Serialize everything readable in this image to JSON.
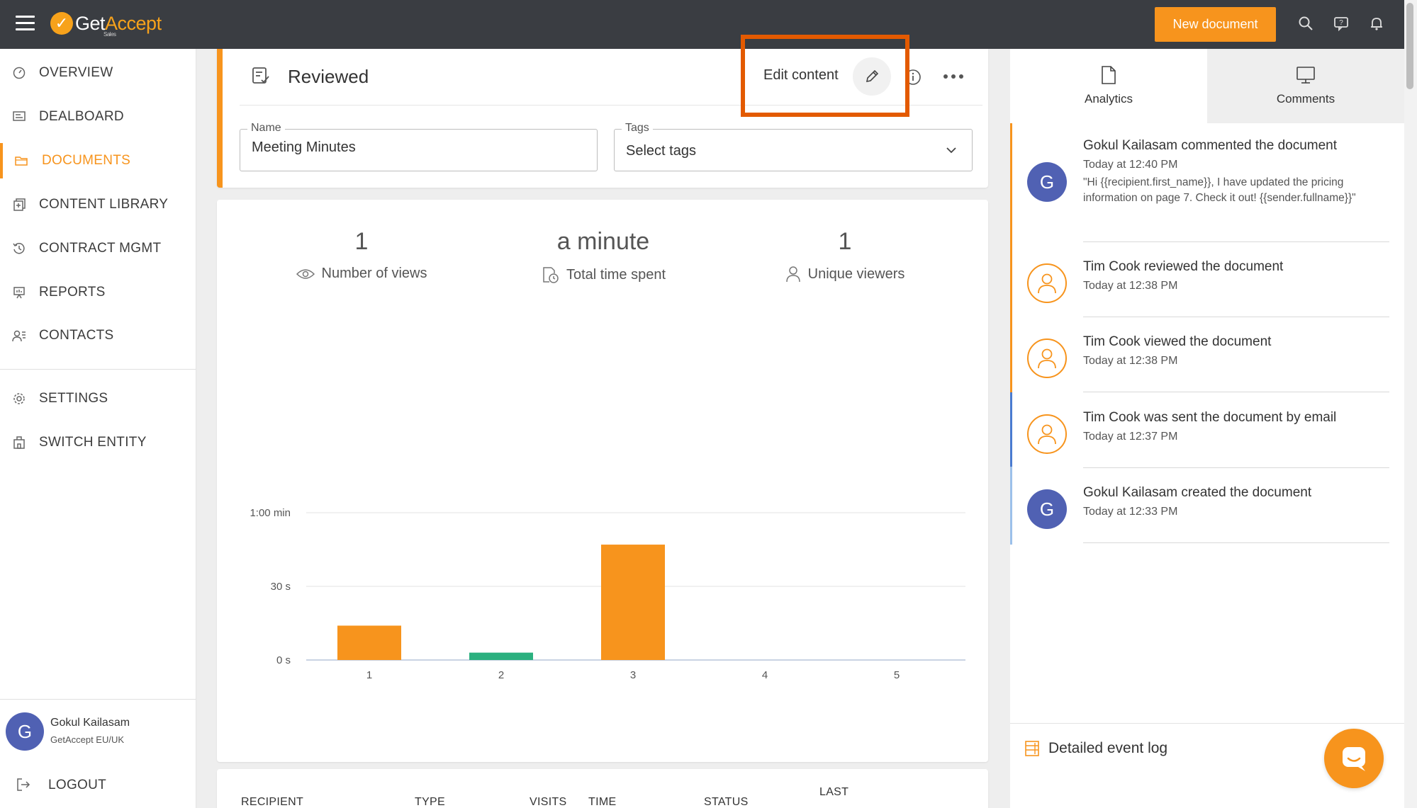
{
  "app": {
    "logo_text_a": "Get",
    "logo_text_b": "Accept",
    "logo_sub": "Sales",
    "brand_color": "#f7941d"
  },
  "topbar": {
    "new_document_label": "New document",
    "icons": [
      "menu-icon",
      "search-icon",
      "help-icon",
      "bell-icon"
    ]
  },
  "sidebar": {
    "items": [
      {
        "label": "OVERVIEW",
        "icon": "gauge-icon"
      },
      {
        "label": "DEALBOARD",
        "icon": "dealboard-icon"
      },
      {
        "label": "DOCUMENTS",
        "icon": "folder-icon",
        "active": true
      },
      {
        "label": "CONTENT LIBRARY",
        "icon": "library-icon"
      },
      {
        "label": "CONTRACT MGMT",
        "icon": "history-icon"
      },
      {
        "label": "REPORTS",
        "icon": "presentation-icon"
      },
      {
        "label": "CONTACTS",
        "icon": "contacts-icon"
      },
      {
        "label": "SETTINGS",
        "icon": "gear-icon"
      },
      {
        "label": "SWITCH ENTITY",
        "icon": "entity-icon"
      }
    ],
    "user": {
      "initial": "G",
      "name": "Gokul Kailasam",
      "org": "GetAccept EU/UK"
    },
    "logout_label": "LOGOUT"
  },
  "document": {
    "status": "Reviewed",
    "edit_content_label": "Edit content",
    "name_label": "Name",
    "name_value": "Meeting Minutes",
    "tags_label": "Tags",
    "tags_placeholder": "Select tags"
  },
  "stats": {
    "views_value": "1",
    "views_label": "Number of views",
    "time_value": "a minute",
    "time_label": "Total time spent",
    "viewers_value": "1",
    "viewers_label": "Unique viewers"
  },
  "chart_data": {
    "type": "bar",
    "categories": [
      "1",
      "2",
      "3",
      "4",
      "5"
    ],
    "values": [
      14,
      3,
      47,
      0,
      0
    ],
    "bar_colors": [
      "#f7941d",
      "#2bb07f",
      "#f7941d",
      "#f7941d",
      "#f7941d"
    ],
    "y_ticks": [
      {
        "value": 0,
        "label": "0 s"
      },
      {
        "value": 30,
        "label": "30 s"
      },
      {
        "value": 60,
        "label": "1:00 min"
      }
    ],
    "ylim": [
      0,
      60
    ],
    "unit": "seconds",
    "grid": true
  },
  "table": {
    "headers": [
      "RECIPIENT",
      "TYPE",
      "VISITS",
      "TIME",
      "STATUS",
      "LAST"
    ]
  },
  "right_panel": {
    "tabs": [
      {
        "label": "Analytics",
        "icon": "document-icon",
        "active": true
      },
      {
        "label": "Comments",
        "icon": "monitor-icon",
        "active": false
      }
    ],
    "events": [
      {
        "avatar": "G",
        "title": "Gokul Kailasam commented the document",
        "time": "Today at 12:40 PM",
        "body": "\"Hi {{recipient.first_name}}, I have updated the pricing information on page 7. Check it out! {{sender.fullname}}\""
      },
      {
        "avatar": "person",
        "title": "Tim Cook reviewed the document",
        "time": "Today at 12:38 PM"
      },
      {
        "avatar": "person",
        "title": "Tim Cook viewed the document",
        "time": "Today at 12:38 PM"
      },
      {
        "avatar": "person",
        "title": "Tim Cook was sent the document by email",
        "time": "Today at 12:37 PM"
      },
      {
        "avatar": "G",
        "title": "Gokul Kailasam created the document",
        "time": "Today at 12:33 PM"
      }
    ],
    "event_log_label": "Detailed event log"
  }
}
